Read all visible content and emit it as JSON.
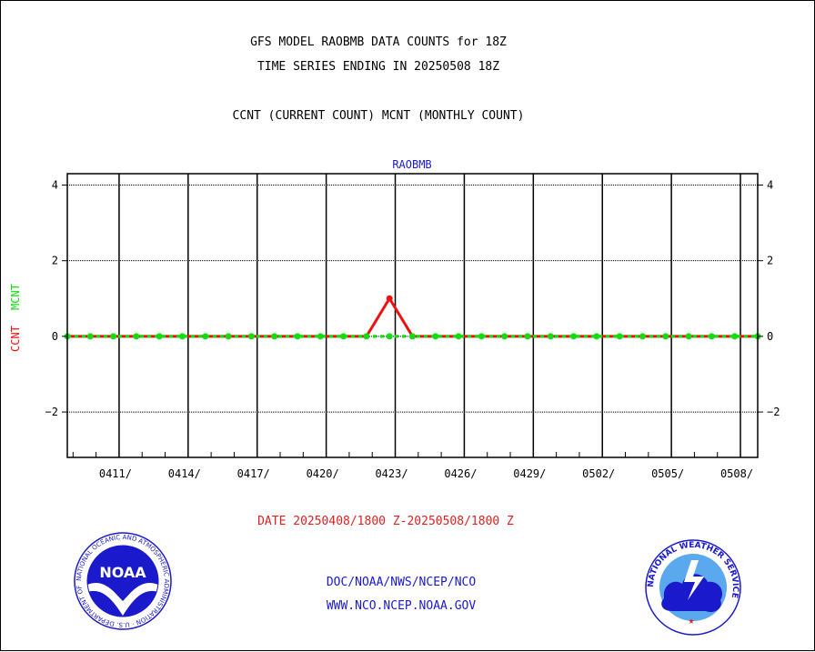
{
  "titles": {
    "line1": "GFS MODEL RAOBMB DATA COUNTS for 18Z",
    "line2": "TIME SERIES ENDING IN 20250508 18Z",
    "line3": "CCNT (CURRENT COUNT) MCNT (MONTHLY COUNT)"
  },
  "footer": {
    "date_range": "DATE 20250408/1800 Z-20250508/1800 Z",
    "org_line": "DOC/NOAA/NWS/NCEP/NCO",
    "url_line": "WWW.NCO.NCEP.NOAA.GOV"
  },
  "logos": {
    "noaa_text": "NOAA",
    "noaa_ring_text": "NATIONAL OCEANIC AND ATMOSPHERIC ADMINISTRATION · U.S. DEPARTMENT OF COMMERCE",
    "nws_ring_text": "NATIONAL WEATHER SERVICE"
  },
  "colors": {
    "ccnt": "#ee1111",
    "mcnt": "#11dd11",
    "panel_label": "#1a1acc"
  },
  "chart_data": {
    "type": "line",
    "title": "RAOBMB",
    "ylabel_ccnt": "CCNT",
    "ylabel_mcnt": "MCNT",
    "ylim": [
      -3.2,
      4.3
    ],
    "yticks": [
      4,
      2,
      0,
      -2
    ],
    "ytick_labels": [
      "4",
      "2",
      "0",
      "−2"
    ],
    "x_start": "2025-04-08T18:00",
    "x_end": "2025-05-08T18:00",
    "xtick_labels": [
      "0411/",
      "0414/",
      "0417/",
      "0420/",
      "0423/",
      "0426/",
      "0429/",
      "0502/",
      "0505/",
      "0508/"
    ],
    "xtick_dates": [
      "2025-04-11",
      "2025-04-14",
      "2025-04-17",
      "2025-04-20",
      "2025-04-23",
      "2025-04-26",
      "2025-04-29",
      "2025-05-02",
      "2025-05-05",
      "2025-05-08"
    ],
    "grid": true,
    "series": [
      {
        "name": "CCNT",
        "color": "#ee1111",
        "dates": [
          "2025-04-08",
          "2025-04-09",
          "2025-04-10",
          "2025-04-11",
          "2025-04-12",
          "2025-04-13",
          "2025-04-14",
          "2025-04-15",
          "2025-04-16",
          "2025-04-17",
          "2025-04-18",
          "2025-04-19",
          "2025-04-20",
          "2025-04-21",
          "2025-04-22",
          "2025-04-23",
          "2025-04-24",
          "2025-04-25",
          "2025-04-26",
          "2025-04-27",
          "2025-04-28",
          "2025-04-29",
          "2025-04-30",
          "2025-05-01",
          "2025-05-02",
          "2025-05-03",
          "2025-05-04",
          "2025-05-05",
          "2025-05-06",
          "2025-05-07",
          "2025-05-08"
        ],
        "values": [
          0,
          0,
          0,
          0,
          0,
          0,
          0,
          0,
          0,
          0,
          0,
          0,
          0,
          0,
          1,
          0,
          0,
          0,
          0,
          0,
          0,
          0,
          0,
          0,
          0,
          0,
          0,
          0,
          0,
          0,
          0
        ]
      },
      {
        "name": "MCNT",
        "color": "#11dd11",
        "dates": [
          "2025-04-08",
          "2025-04-09",
          "2025-04-10",
          "2025-04-11",
          "2025-04-12",
          "2025-04-13",
          "2025-04-14",
          "2025-04-15",
          "2025-04-16",
          "2025-04-17",
          "2025-04-18",
          "2025-04-19",
          "2025-04-20",
          "2025-04-21",
          "2025-04-22",
          "2025-04-23",
          "2025-04-24",
          "2025-04-25",
          "2025-04-26",
          "2025-04-27",
          "2025-04-28",
          "2025-04-29",
          "2025-04-30",
          "2025-05-01",
          "2025-05-02",
          "2025-05-03",
          "2025-05-04",
          "2025-05-05",
          "2025-05-06",
          "2025-05-07",
          "2025-05-08"
        ],
        "values": [
          0,
          0,
          0,
          0,
          0,
          0,
          0,
          0,
          0,
          0,
          0,
          0,
          0,
          0,
          0,
          0,
          0,
          0,
          0,
          0,
          0,
          0,
          0,
          0,
          0,
          0,
          0,
          0,
          0,
          0,
          0
        ]
      }
    ]
  }
}
